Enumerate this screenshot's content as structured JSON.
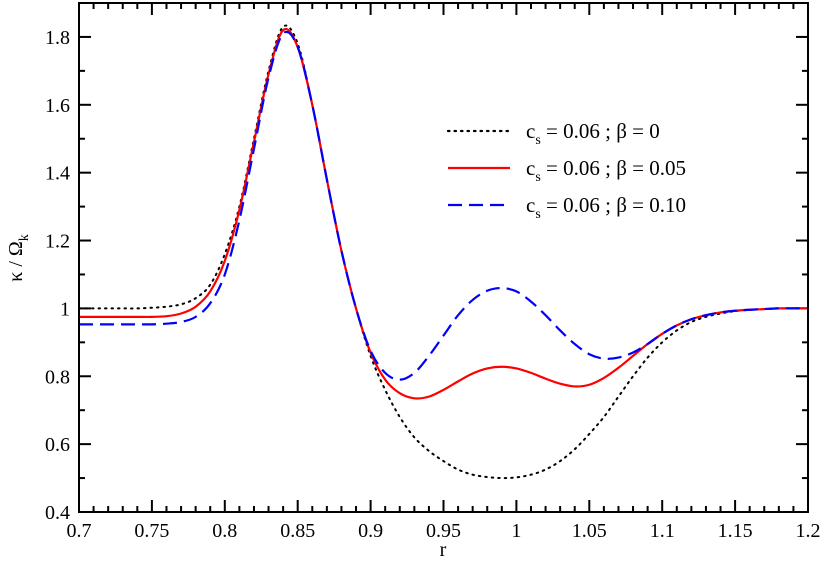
{
  "chart_data": {
    "type": "line",
    "xlabel": "r",
    "ylabel": {
      "main": "κ / Ω",
      "sub": "k"
    },
    "xlim": [
      0.7,
      1.2
    ],
    "ylim": [
      0.4,
      1.9
    ],
    "x_ticks": [
      "0.7",
      "0.75",
      "0.8",
      "0.85",
      "0.9",
      "0.95",
      "1",
      "1.05",
      "1.1",
      "1.15",
      "1.2"
    ],
    "y_ticks": [
      "0.4",
      "0.6",
      "0.8",
      "1",
      "1.2",
      "1.4",
      "1.6",
      "1.8"
    ],
    "grid": false,
    "legend_position": "top-right",
    "x": [
      0.7,
      0.71,
      0.72,
      0.73,
      0.74,
      0.75,
      0.76,
      0.77,
      0.78,
      0.79,
      0.8,
      0.81,
      0.82,
      0.83,
      0.84,
      0.85,
      0.86,
      0.87,
      0.88,
      0.89,
      0.9,
      0.91,
      0.92,
      0.93,
      0.94,
      0.95,
      0.96,
      0.97,
      0.98,
      0.99,
      1.0,
      1.01,
      1.02,
      1.03,
      1.04,
      1.05,
      1.06,
      1.07,
      1.08,
      1.09,
      1.1,
      1.11,
      1.12,
      1.13,
      1.14,
      1.15,
      1.16,
      1.17,
      1.18,
      1.19,
      1.2
    ],
    "series": [
      {
        "name": "c_s = 0.06 ; β = 0",
        "label": {
          "c": "c",
          "sub": "s",
          "rest": " = 0.06 ; β = 0"
        },
        "color": "#000000",
        "style": "dotted",
        "values": [
          1.0,
          1.0,
          1.0,
          1.0,
          1.0,
          1.002,
          1.005,
          1.012,
          1.03,
          1.07,
          1.16,
          1.3,
          1.5,
          1.7,
          1.83,
          1.78,
          1.6,
          1.38,
          1.17,
          1.0,
          0.86,
          0.76,
          0.68,
          0.62,
          0.58,
          0.55,
          0.525,
          0.51,
          0.503,
          0.5,
          0.502,
          0.51,
          0.525,
          0.55,
          0.585,
          0.63,
          0.68,
          0.74,
          0.8,
          0.855,
          0.9,
          0.935,
          0.96,
          0.975,
          0.985,
          0.992,
          0.996,
          0.998,
          1.0,
          1.0,
          1.0
        ]
      },
      {
        "name": "c_s = 0.06 ; β = 0.05",
        "label": {
          "c": "c",
          "sub": "s",
          "rest": " = 0.06 ; β = 0.05"
        },
        "color": "#ff0000",
        "style": "solid",
        "values": [
          0.975,
          0.975,
          0.975,
          0.975,
          0.975,
          0.975,
          0.977,
          0.985,
          1.005,
          1.05,
          1.14,
          1.29,
          1.49,
          1.69,
          1.82,
          1.77,
          1.6,
          1.38,
          1.17,
          1.0,
          0.87,
          0.79,
          0.75,
          0.735,
          0.74,
          0.76,
          0.785,
          0.808,
          0.823,
          0.828,
          0.823,
          0.81,
          0.793,
          0.778,
          0.77,
          0.775,
          0.795,
          0.825,
          0.86,
          0.895,
          0.925,
          0.95,
          0.968,
          0.98,
          0.988,
          0.993,
          0.996,
          0.998,
          1.0,
          1.0,
          1.0
        ]
      },
      {
        "name": "c_s = 0.06 ; β = 0.10",
        "label": {
          "c": "c",
          "sub": "s",
          "rest": " = 0.06 ; β = 0.10"
        },
        "color": "#0000ff",
        "style": "dashed",
        "values": [
          0.953,
          0.953,
          0.953,
          0.953,
          0.953,
          0.953,
          0.955,
          0.96,
          0.975,
          1.015,
          1.1,
          1.26,
          1.47,
          1.68,
          1.81,
          1.77,
          1.6,
          1.38,
          1.17,
          1.0,
          0.875,
          0.81,
          0.79,
          0.81,
          0.86,
          0.92,
          0.98,
          1.025,
          1.052,
          1.06,
          1.05,
          1.02,
          0.98,
          0.935,
          0.895,
          0.865,
          0.852,
          0.855,
          0.87,
          0.895,
          0.925,
          0.95,
          0.968,
          0.98,
          0.988,
          0.993,
          0.996,
          0.998,
          1.0,
          1.0,
          1.0
        ]
      }
    ]
  }
}
